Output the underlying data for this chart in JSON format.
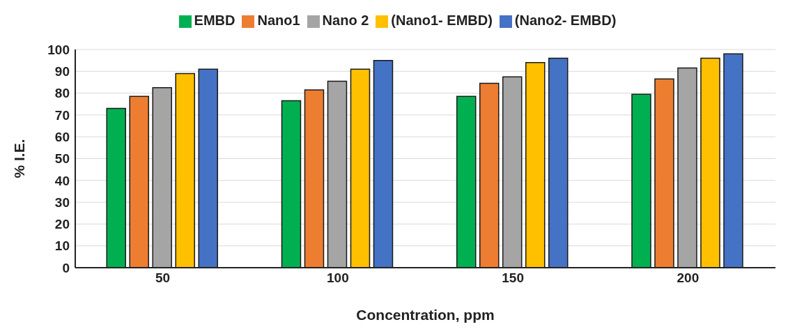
{
  "chart_data": {
    "type": "bar",
    "xlabel": "Concentration, ppm",
    "ylabel": "% I.E.",
    "categories": [
      "50",
      "100",
      "150",
      "200"
    ],
    "series": [
      {
        "name": "EMBD",
        "color": "#00b050",
        "values": [
          73,
          76.5,
          78.5,
          79.5
        ]
      },
      {
        "name": "Nano1",
        "color": "#ed7d31",
        "values": [
          78.5,
          81.5,
          84.5,
          86.5
        ]
      },
      {
        "name": "Nano 2",
        "color": "#a5a5a5",
        "values": [
          82.5,
          85.5,
          87.5,
          91.5
        ]
      },
      {
        "name": "(Nano1- EMBD)",
        "color": "#ffc000",
        "values": [
          89,
          91,
          94,
          96
        ]
      },
      {
        "name": "(Nano2- EMBD)",
        "color": "#4472c4",
        "values": [
          91,
          95,
          96,
          98
        ]
      }
    ],
    "ylim": [
      0,
      100
    ],
    "yticks": [
      0,
      10,
      20,
      30,
      40,
      50,
      60,
      70,
      80,
      90,
      100
    ],
    "grid": "y",
    "legend": "top"
  }
}
